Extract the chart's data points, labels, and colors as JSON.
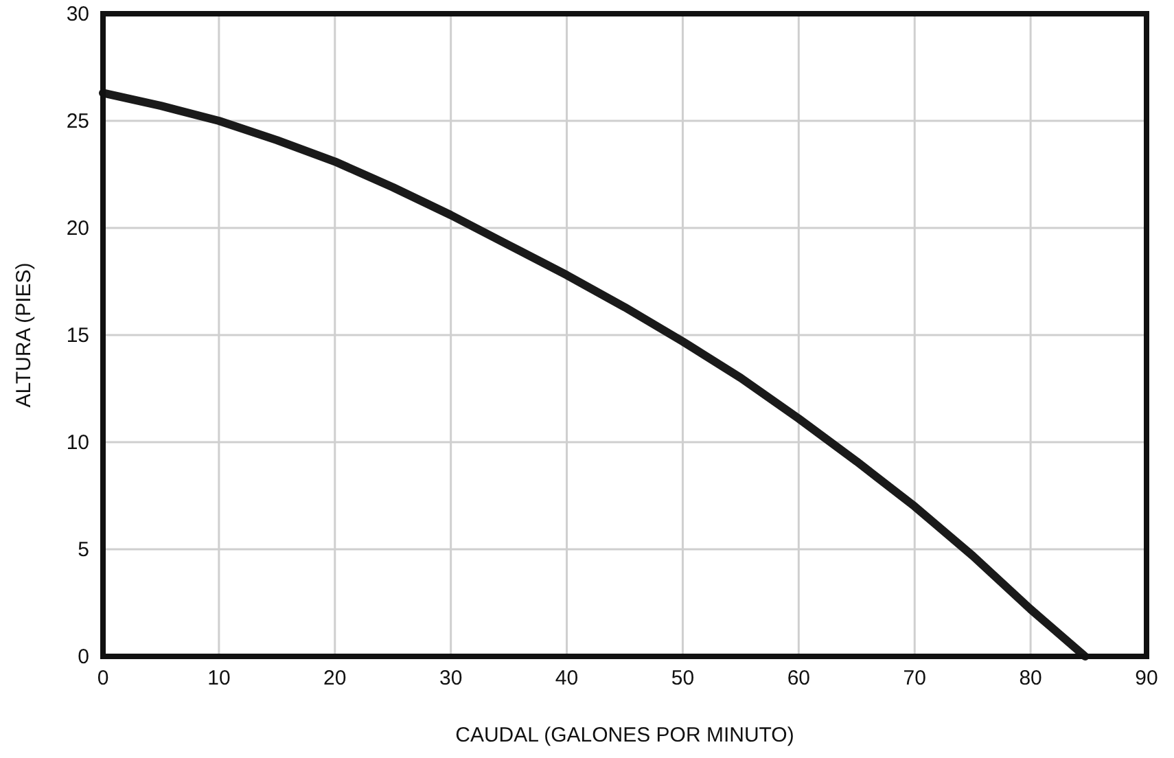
{
  "chart_data": {
    "type": "line",
    "xlabel": "CAUDAL (GALONES POR MINUTO)",
    "ylabel": "ALTURA (PIES)",
    "x": [
      0,
      5,
      10,
      15,
      20,
      25,
      30,
      35,
      40,
      45,
      50,
      55,
      60,
      65,
      70,
      75,
      80,
      84.7
    ],
    "series": [
      {
        "color": "#1a1a1a",
        "values": [
          26.3,
          25.7,
          25.0,
          24.1,
          23.1,
          21.9,
          20.6,
          19.2,
          17.8,
          16.3,
          14.7,
          13.0,
          11.1,
          9.1,
          7.0,
          4.7,
          2.2,
          0
        ]
      }
    ],
    "xlim": [
      0,
      90
    ],
    "xticks": [
      0,
      10,
      20,
      30,
      40,
      50,
      60,
      70,
      80,
      90
    ],
    "ylim": [
      0,
      30
    ],
    "yticks": [
      0,
      5,
      10,
      15,
      20,
      25,
      30
    ],
    "grid": true,
    "marker": "none",
    "line_style": "solid"
  }
}
